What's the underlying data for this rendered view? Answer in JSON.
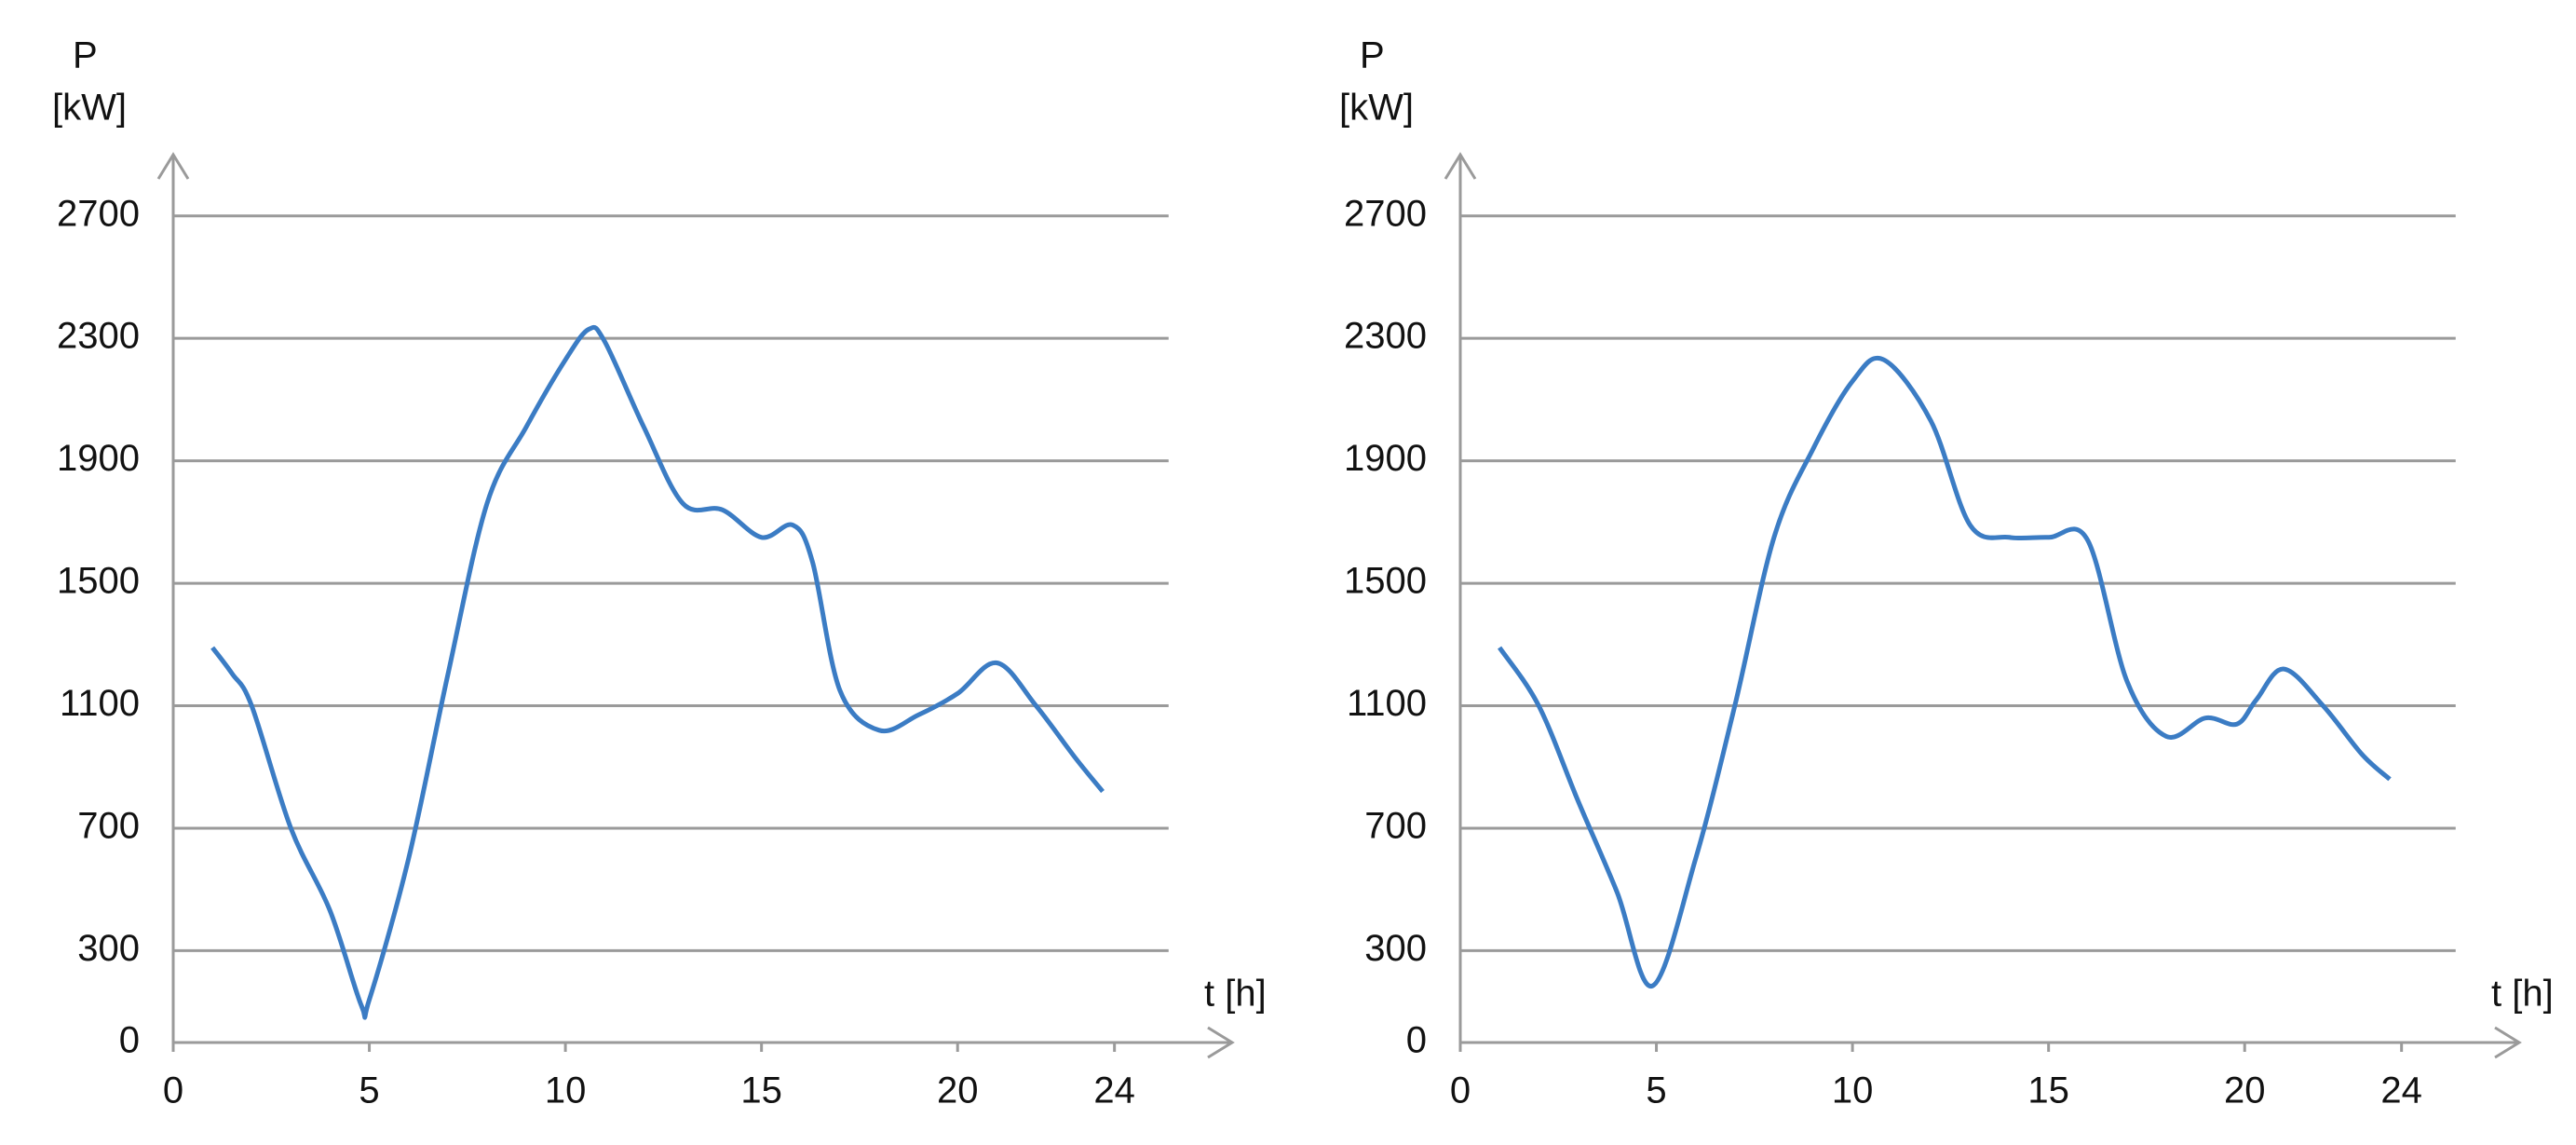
{
  "chart_data": [
    {
      "type": "line",
      "ylabel": "P",
      "yunit": "[kW]",
      "xlabel": "t [h]",
      "xlim": [
        0,
        27
      ],
      "ylim": [
        0,
        2900
      ],
      "xticks": [
        0,
        5,
        10,
        15,
        20,
        24
      ],
      "yticks": [
        0,
        300,
        700,
        1100,
        1500,
        1900,
        2300,
        2700
      ],
      "grid": true,
      "series": [
        {
          "color": "#3b7cc4",
          "x": [
            1,
            1.5,
            2,
            3,
            4,
            4.8,
            5,
            6,
            7,
            8,
            9,
            10,
            10.6,
            11,
            12,
            13,
            14,
            15,
            15.8,
            16.3,
            17,
            18,
            19,
            20,
            21,
            22,
            23,
            23.7
          ],
          "values": [
            1290,
            1205,
            1100,
            700,
            430,
            120,
            140,
            600,
            1200,
            1760,
            2010,
            2230,
            2330,
            2290,
            2010,
            1760,
            1740,
            1650,
            1690,
            1570,
            1150,
            1020,
            1070,
            1140,
            1240,
            1100,
            930,
            820
          ]
        }
      ]
    },
    {
      "type": "line",
      "ylabel": "P",
      "yunit": "[kW]",
      "xlabel": "t [h]",
      "xlim": [
        0,
        27
      ],
      "ylim": [
        0,
        2900
      ],
      "xticks": [
        0,
        5,
        10,
        15,
        20,
        24
      ],
      "yticks": [
        0,
        300,
        700,
        1100,
        1500,
        1900,
        2300,
        2700
      ],
      "grid": true,
      "series": [
        {
          "color": "#3b7cc4",
          "x": [
            1,
            2,
            3,
            4,
            4.9,
            6,
            7,
            8,
            9,
            10,
            10.8,
            12,
            13,
            14,
            15,
            16,
            17,
            18,
            19,
            19.8,
            20.3,
            21,
            22,
            23,
            23.7
          ],
          "values": [
            1290,
            1100,
            790,
            490,
            185,
            600,
            1100,
            1650,
            1940,
            2160,
            2230,
            2030,
            1690,
            1650,
            1650,
            1640,
            1180,
            1000,
            1060,
            1040,
            1120,
            1220,
            1100,
            940,
            860
          ]
        }
      ]
    }
  ]
}
